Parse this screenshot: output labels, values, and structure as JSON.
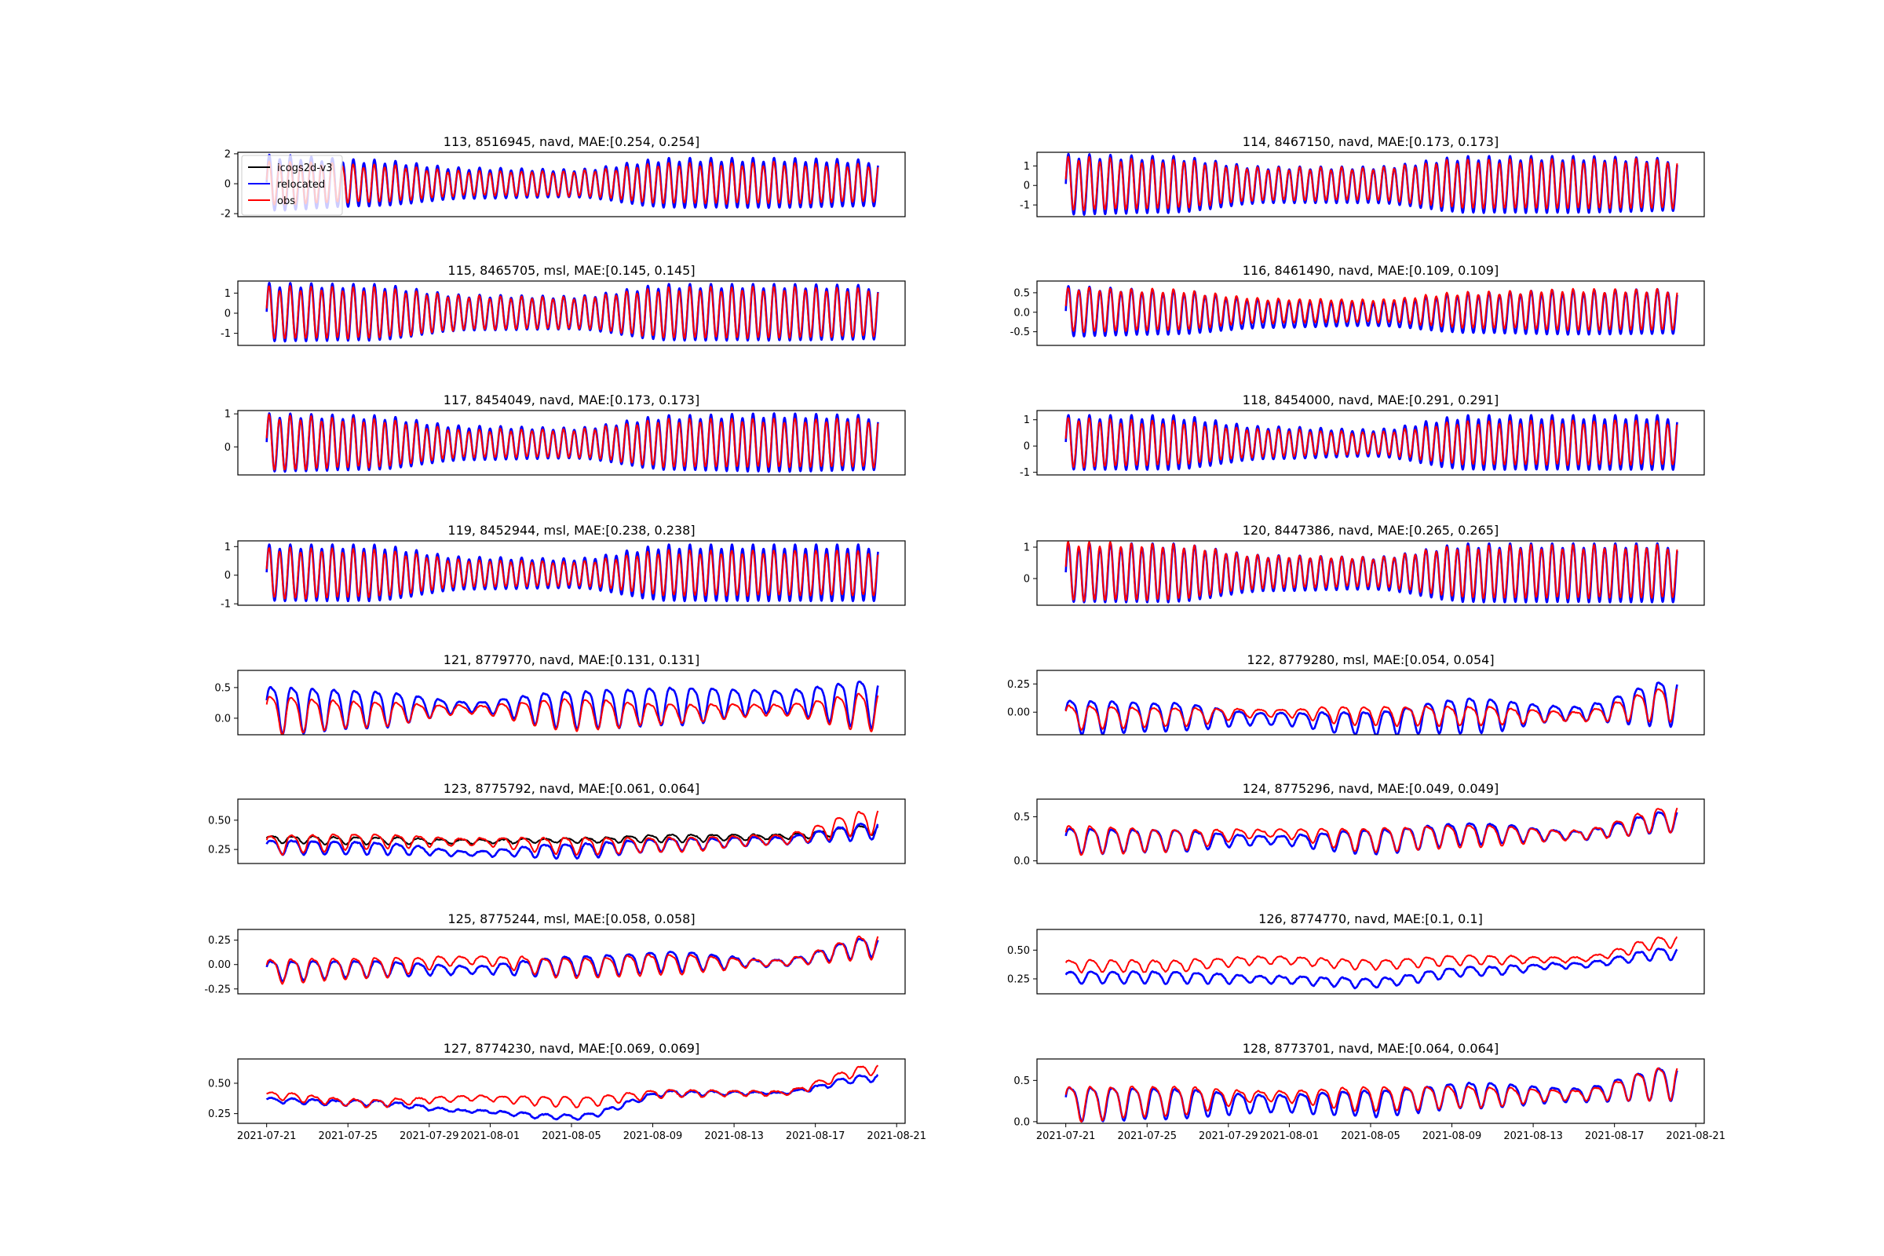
{
  "chart_data": {
    "type": "line",
    "grid": false,
    "layout": "8 rows x 2 columns of time-series panels, shared date x-axis",
    "x_ticks": [
      "2021-07-21",
      "2021-07-25",
      "2021-07-29",
      "2021-08-01",
      "2021-08-05",
      "2021-08-09",
      "2021-08-13",
      "2021-08-17",
      "2021-08-21"
    ],
    "xlim": [
      "2021-07-19T14:00",
      "2021-08-21T10:00"
    ],
    "data_range": [
      "2021-07-21",
      "2021-08-20"
    ],
    "knot_dates": [
      "2021-07-21",
      "2021-07-26",
      "2021-07-31",
      "2021-08-05",
      "2021-08-10",
      "2021-08-15",
      "2021-08-20"
    ],
    "series_styles": {
      "icogs2d-v3": {
        "color": "#000000"
      },
      "relocated": {
        "color": "#0000ff"
      },
      "obs": {
        "color": "#ff0000"
      }
    },
    "legend": {
      "panel": 0,
      "placement": "upper-left",
      "entries": [
        "icogs2d-v3",
        "relocated",
        "obs"
      ]
    },
    "panels": [
      {
        "title": "113, 8516945, navd, MAE:[0.254, 0.254]",
        "tide": "semidiurnal",
        "ylim": [
          -2.2,
          2.1
        ],
        "yticks": [
          "2",
          "0",
          "-2"
        ],
        "ytick_values": [
          2,
          0,
          -2
        ],
        "series": [
          {
            "name": "relocated",
            "mean": [
              0,
              0,
              0,
              0,
              0,
              0,
              0
            ],
            "amp": [
              1.8,
              1.5,
              1.0,
              0.9,
              1.6,
              1.6,
              1.5
            ]
          },
          {
            "name": "obs",
            "mean": [
              0,
              0,
              0,
              0,
              0,
              0,
              0
            ],
            "amp": [
              1.4,
              1.2,
              0.8,
              0.8,
              1.3,
              1.3,
              1.2
            ]
          }
        ]
      },
      {
        "title": "114, 8467150, navd, MAE:[0.173, 0.173]",
        "tide": "semidiurnal",
        "ylim": [
          -1.6,
          1.7
        ],
        "yticks": [
          "1",
          "0",
          "-1"
        ],
        "ytick_values": [
          1,
          0,
          -1
        ],
        "series": [
          {
            "name": "relocated",
            "mean": [
              0,
              0,
              0,
              0,
              0,
              0,
              0
            ],
            "amp": [
              1.5,
              1.4,
              0.9,
              0.9,
              1.4,
              1.4,
              1.3
            ]
          },
          {
            "name": "obs",
            "mean": [
              0.05,
              0.05,
              0.05,
              0.05,
              0.05,
              0.05,
              0.05
            ],
            "amp": [
              1.3,
              1.2,
              0.8,
              0.8,
              1.2,
              1.2,
              1.2
            ]
          }
        ]
      },
      {
        "title": "115, 8465705, msl, MAE:[0.145, 0.145]",
        "tide": "semidiurnal",
        "ylim": [
          -1.6,
          1.6
        ],
        "yticks": [
          "1",
          "0",
          "-1"
        ],
        "ytick_values": [
          1,
          0,
          -1
        ],
        "series": [
          {
            "name": "relocated",
            "mean": [
              0,
              0,
              0,
              0,
              0,
              0,
              0
            ],
            "amp": [
              1.4,
              1.35,
              0.85,
              0.8,
              1.35,
              1.35,
              1.3
            ]
          },
          {
            "name": "obs",
            "mean": [
              0,
              0,
              0,
              0,
              0,
              0,
              0
            ],
            "amp": [
              1.25,
              1.2,
              0.8,
              0.75,
              1.2,
              1.2,
              1.15
            ]
          }
        ]
      },
      {
        "title": "116, 8461490, navd, MAE:[0.109, 0.109]",
        "tide": "semidiurnal",
        "ylim": [
          -0.85,
          0.8
        ],
        "yticks": [
          "0.5",
          "0.0",
          "-0.5"
        ],
        "ytick_values": [
          0.5,
          0,
          -0.5
        ],
        "series": [
          {
            "name": "relocated",
            "mean": [
              0,
              -0.02,
              -0.05,
              -0.05,
              -0.03,
              -0.02,
              0
            ],
            "amp": [
              0.62,
              0.55,
              0.35,
              0.3,
              0.5,
              0.55,
              0.55
            ]
          },
          {
            "name": "obs",
            "mean": [
              0.05,
              0.05,
              0.03,
              0.03,
              0.05,
              0.05,
              0.05
            ],
            "amp": [
              0.55,
              0.5,
              0.3,
              0.28,
              0.45,
              0.5,
              0.5
            ]
          }
        ]
      },
      {
        "title": "117, 8454049, navd, MAE:[0.173, 0.173]",
        "tide": "semidiurnal",
        "ylim": [
          -0.85,
          1.1
        ],
        "yticks": [
          "1",
          "0"
        ],
        "ytick_values": [
          1,
          0
        ],
        "series": [
          {
            "name": "relocated",
            "mean": [
              0.1,
              0.1,
              0.1,
              0.1,
              0.1,
              0.1,
              0.1
            ],
            "amp": [
              0.85,
              0.8,
              0.5,
              0.45,
              0.8,
              0.85,
              0.8
            ]
          },
          {
            "name": "obs",
            "mean": [
              0.1,
              0.1,
              0.1,
              0.1,
              0.1,
              0.1,
              0.1
            ],
            "amp": [
              0.8,
              0.7,
              0.4,
              0.4,
              0.7,
              0.7,
              0.7
            ]
          }
        ]
      },
      {
        "title": "118, 8454000, navd, MAE:[0.291, 0.291]",
        "tide": "semidiurnal",
        "ylim": [
          -1.1,
          1.35
        ],
        "yticks": [
          "1",
          "0",
          "-1"
        ],
        "ytick_values": [
          1,
          0,
          -1
        ],
        "series": [
          {
            "name": "relocated",
            "mean": [
              0.1,
              0.1,
              0.1,
              0.1,
              0.1,
              0.1,
              0.1
            ],
            "amp": [
              1.0,
              1.0,
              0.6,
              0.5,
              1.0,
              1.0,
              1.0
            ]
          },
          {
            "name": "obs",
            "mean": [
              0.1,
              0.1,
              0.1,
              0.1,
              0.1,
              0.1,
              0.1
            ],
            "amp": [
              0.9,
              0.8,
              0.5,
              0.4,
              0.8,
              0.8,
              0.8
            ]
          }
        ]
      },
      {
        "title": "119, 8452944, msl, MAE:[0.238, 0.238]",
        "tide": "semidiurnal",
        "ylim": [
          -1.05,
          1.2
        ],
        "yticks": [
          "1",
          "0",
          "-1"
        ],
        "ytick_values": [
          1,
          0,
          -1
        ],
        "series": [
          {
            "name": "relocated",
            "mean": [
              0.05,
              0.05,
              0.05,
              0.05,
              0.05,
              0.05,
              0.05
            ],
            "amp": [
              0.95,
              0.95,
              0.55,
              0.5,
              0.95,
              0.95,
              0.95
            ]
          },
          {
            "name": "obs",
            "mean": [
              0.05,
              0.05,
              0.05,
              0.05,
              0.05,
              0.05,
              0.05
            ],
            "amp": [
              0.85,
              0.8,
              0.45,
              0.4,
              0.75,
              0.75,
              0.75
            ]
          }
        ]
      },
      {
        "title": "120, 8447386, navd, MAE:[0.265, 0.265]",
        "tide": "semidiurnal",
        "ylim": [
          -0.85,
          1.2
        ],
        "yticks": [
          "1",
          "0"
        ],
        "ytick_values": [
          1,
          0
        ],
        "series": [
          {
            "name": "relocated",
            "mean": [
              0.15,
              0.15,
              0.15,
              0.15,
              0.15,
              0.15,
              0.15
            ],
            "amp": [
              0.9,
              0.9,
              0.55,
              0.5,
              0.9,
              0.9,
              0.9
            ]
          },
          {
            "name": "obs",
            "mean": [
              0.2,
              0.2,
              0.2,
              0.2,
              0.2,
              0.2,
              0.2
            ],
            "amp": [
              0.9,
              0.85,
              0.5,
              0.45,
              0.8,
              0.8,
              0.8
            ]
          }
        ]
      },
      {
        "title": "121, 8779770, navd, MAE:[0.131, 0.131]",
        "tide": "diurnal",
        "ylim": [
          -0.27,
          0.78
        ],
        "yticks": [
          "0.5",
          "0.0"
        ],
        "ytick_values": [
          0.5,
          0
        ],
        "series": [
          {
            "name": "relocated",
            "mean": [
              0.2,
              0.2,
              0.2,
              0.2,
              0.25,
              0.3,
              0.3
            ],
            "amp": [
              0.38,
              0.3,
              0.08,
              0.3,
              0.3,
              0.18,
              0.38
            ]
          },
          {
            "name": "obs",
            "mean": [
              0.1,
              0.1,
              0.15,
              0.1,
              0.1,
              0.15,
              0.15
            ],
            "amp": [
              0.3,
              0.2,
              0.06,
              0.25,
              0.15,
              0.08,
              0.3
            ]
          }
        ]
      },
      {
        "title": "122, 8779280, msl, MAE:[0.054, 0.054]",
        "tide": "diurnal",
        "ylim": [
          -0.2,
          0.37
        ],
        "yticks": [
          "0.25",
          "0.00"
        ],
        "ytick_values": [
          0.25,
          0
        ],
        "series": [
          {
            "name": "relocated",
            "mean": [
              -0.02,
              -0.02,
              -0.05,
              -0.08,
              0.0,
              0.0,
              0.12
            ],
            "amp": [
              0.15,
              0.12,
              0.05,
              0.1,
              0.15,
              0.06,
              0.2
            ]
          },
          {
            "name": "obs",
            "mean": [
              -0.03,
              -0.03,
              0.0,
              -0.02,
              -0.02,
              -0.03,
              0.1
            ],
            "amp": [
              0.1,
              0.08,
              0.03,
              0.08,
              0.08,
              0.04,
              0.15
            ]
          }
        ]
      },
      {
        "title": "123, 8775792, navd, MAE:[0.061, 0.064]",
        "tide": "diurnal",
        "ylim": [
          0.13,
          0.68
        ],
        "yticks": [
          "0.50",
          "0.25"
        ],
        "ytick_values": [
          0.5,
          0.25
        ],
        "series": [
          {
            "name": "icogs2d-v3",
            "mean": [
              0.34,
              0.33,
              0.32,
              0.33,
              0.35,
              0.36,
              0.42
            ],
            "amp": [
              0.03,
              0.03,
              0.015,
              0.02,
              0.03,
              0.02,
              0.04
            ]
          },
          {
            "name": "relocated",
            "mean": [
              0.28,
              0.27,
              0.22,
              0.25,
              0.3,
              0.33,
              0.42
            ],
            "amp": [
              0.06,
              0.05,
              0.02,
              0.06,
              0.05,
              0.03,
              0.07
            ]
          },
          {
            "name": "obs",
            "mean": [
              0.3,
              0.33,
              0.32,
              0.29,
              0.3,
              0.34,
              0.5
            ],
            "amp": [
              0.08,
              0.06,
              0.03,
              0.07,
              0.06,
              0.04,
              0.1
            ]
          }
        ]
      },
      {
        "title": "124, 8775296, navd, MAE:[0.049, 0.049]",
        "tide": "diurnal",
        "ylim": [
          -0.03,
          0.7
        ],
        "yticks": [
          "0.5",
          "0.0"
        ],
        "ytick_values": [
          0.5,
          0
        ],
        "series": [
          {
            "name": "relocated",
            "mean": [
              0.25,
              0.25,
              0.24,
              0.24,
              0.33,
              0.3,
              0.47
            ],
            "amp": [
              0.14,
              0.12,
              0.05,
              0.13,
              0.12,
              0.05,
              0.12
            ]
          },
          {
            "name": "obs",
            "mean": [
              0.26,
              0.25,
              0.32,
              0.26,
              0.3,
              0.3,
              0.5
            ],
            "amp": [
              0.16,
              0.12,
              0.04,
              0.13,
              0.12,
              0.05,
              0.14
            ]
          }
        ]
      },
      {
        "title": "125, 8775244, msl, MAE:[0.058, 0.058]",
        "tide": "diurnal",
        "ylim": [
          -0.3,
          0.36
        ],
        "yticks": [
          "0.25",
          "0.00",
          "-0.25"
        ],
        "ytick_values": [
          0.25,
          0,
          -0.25
        ],
        "series": [
          {
            "name": "relocated",
            "mean": [
              -0.05,
              -0.03,
              -0.05,
              0.0,
              0.05,
              0.02,
              0.2
            ],
            "amp": [
              0.1,
              0.08,
              0.04,
              0.1,
              0.1,
              0.03,
              0.1
            ]
          },
          {
            "name": "obs",
            "mean": [
              -0.05,
              -0.02,
              0.05,
              -0.02,
              0.02,
              0.02,
              0.2
            ],
            "amp": [
              0.12,
              0.1,
              0.04,
              0.1,
              0.1,
              0.03,
              0.12
            ]
          }
        ]
      },
      {
        "title": "126, 8774770, navd, MAE:[0.1, 0.1]",
        "tide": "diurnal",
        "ylim": [
          0.12,
          0.68
        ],
        "yticks": [
          "0.50",
          "0.25"
        ],
        "ytick_values": [
          0.5,
          0.25
        ],
        "series": [
          {
            "name": "relocated",
            "mean": [
              0.27,
              0.27,
              0.25,
              0.22,
              0.32,
              0.37,
              0.48
            ],
            "amp": [
              0.05,
              0.05,
              0.03,
              0.04,
              0.04,
              0.02,
              0.05
            ]
          },
          {
            "name": "obs",
            "mean": [
              0.37,
              0.37,
              0.42,
              0.38,
              0.42,
              0.42,
              0.58
            ],
            "amp": [
              0.05,
              0.05,
              0.03,
              0.04,
              0.04,
              0.02,
              0.05
            ]
          }
        ]
      },
      {
        "title": "127, 8774230, navd, MAE:[0.069, 0.069]",
        "tide": "diurnal",
        "ylim": [
          0.17,
          0.7
        ],
        "yticks": [
          "0.50",
          "0.25"
        ],
        "ytick_values": [
          0.5,
          0.25
        ],
        "series": [
          {
            "name": "relocated",
            "mean": [
              0.36,
              0.34,
              0.27,
              0.22,
              0.42,
              0.42,
              0.55
            ],
            "amp": [
              0.02,
              0.02,
              0.01,
              0.02,
              0.02,
              0.01,
              0.03
            ]
          },
          {
            "name": "obs",
            "mean": [
              0.4,
              0.34,
              0.38,
              0.35,
              0.42,
              0.42,
              0.62
            ],
            "amp": [
              0.03,
              0.03,
              0.02,
              0.04,
              0.03,
              0.02,
              0.04
            ]
          }
        ]
      },
      {
        "title": "128, 8773701, navd, MAE:[0.064, 0.064]",
        "tide": "diurnal",
        "ylim": [
          -0.02,
          0.76
        ],
        "yticks": [
          "0.5",
          "0.0"
        ],
        "ytick_values": [
          0.5,
          0
        ],
        "series": [
          {
            "name": "relocated",
            "mean": [
              0.25,
              0.25,
              0.24,
              0.25,
              0.35,
              0.34,
              0.5
            ],
            "amp": [
              0.2,
              0.18,
              0.1,
              0.15,
              0.15,
              0.08,
              0.2
            ]
          },
          {
            "name": "obs",
            "mean": [
              0.25,
              0.28,
              0.32,
              0.3,
              0.32,
              0.33,
              0.5
            ],
            "amp": [
              0.2,
              0.17,
              0.06,
              0.14,
              0.12,
              0.06,
              0.2
            ]
          }
        ]
      }
    ]
  }
}
